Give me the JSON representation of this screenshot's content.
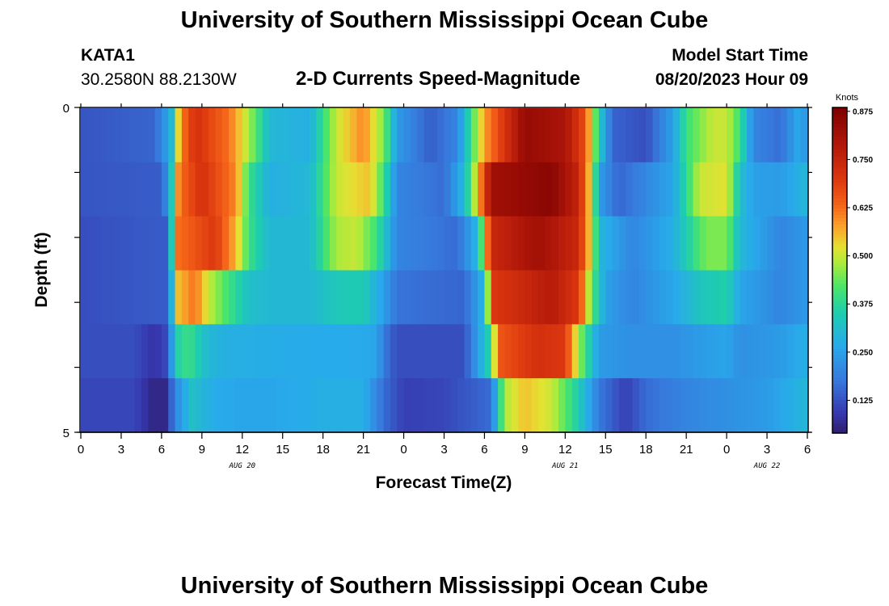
{
  "header": {
    "title": "University of Southern Mississippi Ocean Cube",
    "station_id": "KATA1",
    "coordinates": "30.2580N  88.2130W",
    "subtitle": "2-D Currents Speed-Magnitude",
    "model_start_label": "Model Start Time",
    "model_start_value": "08/20/2023 Hour 09",
    "footer_title": "University of Southern Mississippi Ocean Cube"
  },
  "chart_data": {
    "type": "heatmap",
    "title": "2-D Currents Speed-Magnitude",
    "xlabel": "Forecast Time(Z)",
    "ylabel": "Depth (ft)",
    "x_hours": [
      0,
      54
    ],
    "y_depth_ft": [
      0,
      5
    ],
    "y_tick_labels": [
      "0",
      "5"
    ],
    "x_tick_labels": [
      "0",
      "3",
      "6",
      "9",
      "12",
      "15",
      "18",
      "21",
      "0",
      "3",
      "6",
      "9",
      "12",
      "15",
      "18",
      "21",
      "0",
      "3",
      "6"
    ],
    "date_labels": [
      {
        "text": "AUG 20",
        "hour": 12
      },
      {
        "text": "AUG 21",
        "hour": 36
      },
      {
        "text": "AUG 22",
        "hour": 51
      }
    ],
    "colorbar": {
      "unit": "Knots",
      "range": [
        0.04,
        0.885
      ],
      "tick_labels": [
        "0.125",
        "0.250",
        "0.375",
        "0.500",
        "0.625",
        "0.750",
        "0.875"
      ],
      "tick_values": [
        0.125,
        0.25,
        0.375,
        0.5,
        0.625,
        0.75,
        0.875
      ]
    },
    "depth_layers": [
      {
        "layer": 1,
        "keyframes": [
          [
            0,
            0.13
          ],
          [
            5.5,
            0.15
          ],
          [
            6.7,
            0.28
          ],
          [
            7.4,
            0.6
          ],
          [
            8.5,
            0.72
          ],
          [
            11,
            0.62
          ],
          [
            12.5,
            0.48
          ],
          [
            14,
            0.3
          ],
          [
            17,
            0.28
          ],
          [
            19,
            0.5
          ],
          [
            21,
            0.6
          ],
          [
            22.5,
            0.45
          ],
          [
            23.5,
            0.24
          ],
          [
            26,
            0.14
          ],
          [
            28,
            0.2
          ],
          [
            29,
            0.4
          ],
          [
            30,
            0.58
          ],
          [
            33,
            0.84
          ],
          [
            36,
            0.8
          ],
          [
            37.5,
            0.66
          ],
          [
            38.5,
            0.35
          ],
          [
            39.5,
            0.15
          ],
          [
            42,
            0.12
          ],
          [
            44,
            0.25
          ],
          [
            45,
            0.4
          ],
          [
            47,
            0.5
          ],
          [
            48,
            0.5
          ],
          [
            49,
            0.4
          ],
          [
            50,
            0.2
          ],
          [
            52,
            0.16
          ],
          [
            53.5,
            0.28
          ],
          [
            54,
            0.2
          ]
        ]
      },
      {
        "layer": 2,
        "keyframes": [
          [
            0,
            0.13
          ],
          [
            6,
            0.14
          ],
          [
            6.6,
            0.26
          ],
          [
            7.3,
            0.62
          ],
          [
            9,
            0.72
          ],
          [
            11.5,
            0.6
          ],
          [
            12.5,
            0.4
          ],
          [
            14,
            0.28
          ],
          [
            17,
            0.3
          ],
          [
            19,
            0.5
          ],
          [
            21.5,
            0.55
          ],
          [
            22.5,
            0.4
          ],
          [
            23.5,
            0.2
          ],
          [
            27,
            0.16
          ],
          [
            28.5,
            0.3
          ],
          [
            29.5,
            0.55
          ],
          [
            30.5,
            0.82
          ],
          [
            35,
            0.86
          ],
          [
            37,
            0.75
          ],
          [
            38,
            0.5
          ],
          [
            38.5,
            0.25
          ],
          [
            40,
            0.15
          ],
          [
            44,
            0.26
          ],
          [
            45,
            0.38
          ],
          [
            46,
            0.5
          ],
          [
            48,
            0.52
          ],
          [
            49,
            0.32
          ],
          [
            50,
            0.25
          ],
          [
            52,
            0.24
          ],
          [
            54,
            0.3
          ]
        ]
      },
      {
        "layer": 3,
        "keyframes": [
          [
            0,
            0.12
          ],
          [
            6.5,
            0.14
          ],
          [
            7.1,
            0.62
          ],
          [
            10,
            0.7
          ],
          [
            11.5,
            0.56
          ],
          [
            12.5,
            0.4
          ],
          [
            14,
            0.3
          ],
          [
            17,
            0.3
          ],
          [
            19,
            0.48
          ],
          [
            20.5,
            0.5
          ],
          [
            22,
            0.4
          ],
          [
            23.5,
            0.2
          ],
          [
            28,
            0.16
          ],
          [
            29.5,
            0.3
          ],
          [
            30.5,
            0.74
          ],
          [
            34,
            0.82
          ],
          [
            37,
            0.74
          ],
          [
            38,
            0.5
          ],
          [
            38.5,
            0.3
          ],
          [
            41,
            0.2
          ],
          [
            44,
            0.28
          ],
          [
            45,
            0.35
          ],
          [
            46.5,
            0.45
          ],
          [
            48,
            0.45
          ],
          [
            49,
            0.3
          ],
          [
            52,
            0.2
          ],
          [
            54,
            0.24
          ]
        ]
      },
      {
        "layer": 4,
        "keyframes": [
          [
            0,
            0.12
          ],
          [
            6.5,
            0.14
          ],
          [
            7.2,
            0.55
          ],
          [
            8.5,
            0.62
          ],
          [
            9.5,
            0.5
          ],
          [
            11,
            0.4
          ],
          [
            12.5,
            0.32
          ],
          [
            14,
            0.3
          ],
          [
            17,
            0.3
          ],
          [
            19,
            0.34
          ],
          [
            21,
            0.35
          ],
          [
            22.5,
            0.25
          ],
          [
            23.5,
            0.17
          ],
          [
            28.5,
            0.15
          ],
          [
            30,
            0.3
          ],
          [
            30.6,
            0.7
          ],
          [
            35,
            0.78
          ],
          [
            37,
            0.7
          ],
          [
            38,
            0.42
          ],
          [
            39,
            0.25
          ],
          [
            41,
            0.2
          ],
          [
            44,
            0.26
          ],
          [
            46,
            0.33
          ],
          [
            48,
            0.36
          ],
          [
            49,
            0.26
          ],
          [
            52,
            0.2
          ],
          [
            54,
            0.24
          ]
        ]
      },
      {
        "layer": 5,
        "keyframes": [
          [
            0,
            0.12
          ],
          [
            4,
            0.12
          ],
          [
            5.5,
            0.08
          ],
          [
            6.5,
            0.12
          ],
          [
            7,
            0.35
          ],
          [
            8,
            0.4
          ],
          [
            9.5,
            0.3
          ],
          [
            11,
            0.28
          ],
          [
            17,
            0.27
          ],
          [
            20,
            0.27
          ],
          [
            22,
            0.26
          ],
          [
            22.5,
            0.18
          ],
          [
            23.5,
            0.12
          ],
          [
            28.5,
            0.12
          ],
          [
            30.5,
            0.38
          ],
          [
            31,
            0.65
          ],
          [
            34,
            0.72
          ],
          [
            36,
            0.7
          ],
          [
            37,
            0.48
          ],
          [
            38.5,
            0.24
          ],
          [
            41,
            0.22
          ],
          [
            44,
            0.22
          ],
          [
            46,
            0.24
          ],
          [
            48,
            0.26
          ],
          [
            49,
            0.22
          ],
          [
            52,
            0.24
          ],
          [
            54,
            0.28
          ]
        ]
      },
      {
        "layer": 6,
        "keyframes": [
          [
            0,
            0.11
          ],
          [
            4,
            0.11
          ],
          [
            5.3,
            0.06
          ],
          [
            6.3,
            0.06
          ],
          [
            7,
            0.2
          ],
          [
            8.2,
            0.32
          ],
          [
            10,
            0.27
          ],
          [
            12,
            0.26
          ],
          [
            14,
            0.26
          ],
          [
            18,
            0.28
          ],
          [
            21,
            0.28
          ],
          [
            22.5,
            0.16
          ],
          [
            24,
            0.1
          ],
          [
            27,
            0.11
          ],
          [
            30.5,
            0.16
          ],
          [
            31.5,
            0.48
          ],
          [
            33,
            0.55
          ],
          [
            35,
            0.5
          ],
          [
            37,
            0.35
          ],
          [
            38.5,
            0.18
          ],
          [
            40.5,
            0.1
          ],
          [
            42,
            0.16
          ],
          [
            45,
            0.2
          ],
          [
            48,
            0.22
          ],
          [
            51,
            0.24
          ],
          [
            54,
            0.3
          ]
        ]
      }
    ]
  }
}
